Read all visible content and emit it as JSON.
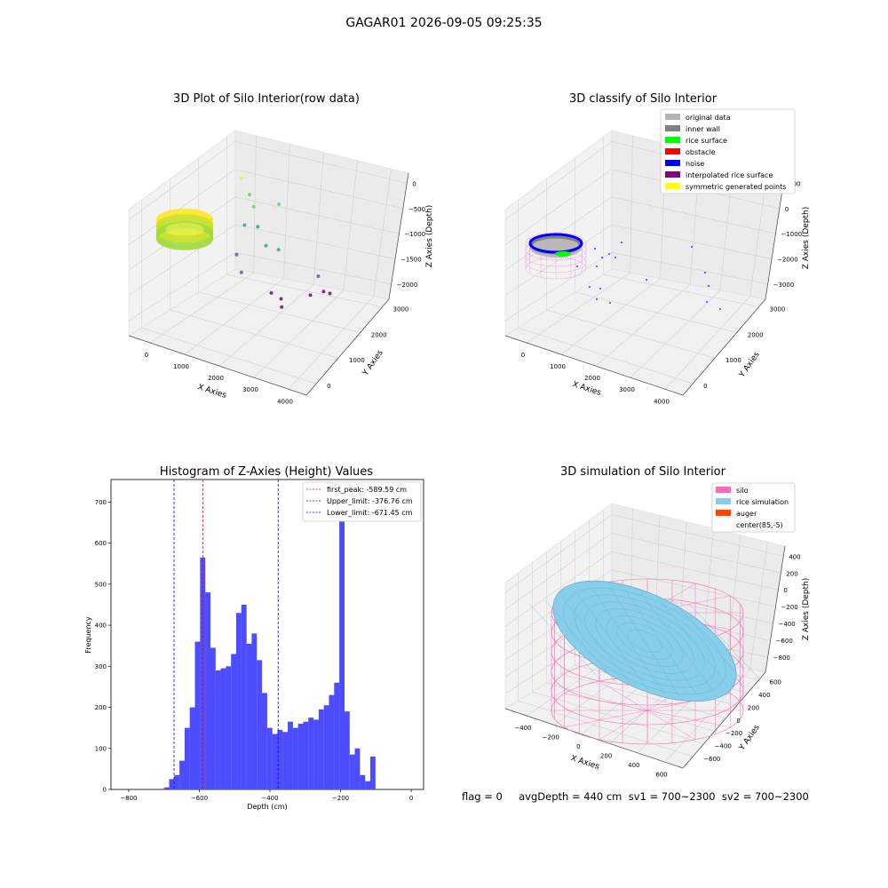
{
  "figure": {
    "suptitle": "GAGAR01 2026-09-05 09:25:35",
    "footer": "flag = 0     avgDepth = 440 cm  sv1 = 700~2300  sv2 = 700~2300"
  },
  "chart_data": [
    {
      "type": "scatter",
      "title": "3D Plot of Silo Interior(row data)",
      "xlabel": "X Axies",
      "ylabel": "Y Axies",
      "zlabel": "Z Axies (Depth)",
      "x_ticks": [
        "0",
        "1000",
        "2000",
        "3000",
        "4000"
      ],
      "y_ticks": [
        "0",
        "1000",
        "2000",
        "3000"
      ],
      "z_ticks": [
        "0",
        "−500",
        "−1000",
        "−1500",
        "−2000"
      ],
      "points": [
        {
          "x": 300,
          "y": 2400,
          "z": -300
        },
        {
          "x": 700,
          "y": 2200,
          "z": -450
        },
        {
          "x": 900,
          "y": 2100,
          "z": -600
        },
        {
          "x": 1300,
          "y": 2500,
          "z": -600
        },
        {
          "x": 800,
          "y": 1900,
          "z": -900
        },
        {
          "x": 1100,
          "y": 2000,
          "z": -900
        },
        {
          "x": 1500,
          "y": 1800,
          "z": -1100
        },
        {
          "x": 1700,
          "y": 2000,
          "z": -1200
        },
        {
          "x": 900,
          "y": 1500,
          "z": -1300
        },
        {
          "x": 1200,
          "y": 1300,
          "z": -1500
        },
        {
          "x": 2600,
          "y": 2300,
          "z": -1600
        },
        {
          "x": 3000,
          "y": 2000,
          "z": -1700
        },
        {
          "x": 3100,
          "y": 2100,
          "z": -1750
        },
        {
          "x": 2700,
          "y": 1900,
          "z": -1800
        },
        {
          "x": 1900,
          "y": 1500,
          "z": -1800
        },
        {
          "x": 2100,
          "y": 1600,
          "z": -1900
        },
        {
          "x": 2200,
          "y": 1500,
          "z": -2000
        }
      ]
    },
    {
      "type": "scatter",
      "title": "3D classify of Silo Interior",
      "xlabel": "X Axies",
      "ylabel": "Y Axies",
      "zlabel": "Z Axies (Depth)",
      "x_ticks": [
        "0",
        "1000",
        "2000",
        "3000",
        "4000"
      ],
      "y_ticks": [
        "0",
        "1000",
        "2000",
        "3000"
      ],
      "z_ticks": [
        "000",
        "0",
        "−1000",
        "−2000",
        "−3000"
      ],
      "legend_position": "upper right",
      "legend": [
        {
          "label": "original data",
          "color": "#b3b3b3"
        },
        {
          "label": "inner wall",
          "color": "#808080"
        },
        {
          "label": "rice surface",
          "color": "#00ff00"
        },
        {
          "label": "obstacle",
          "color": "#ff0000"
        },
        {
          "label": "noise",
          "color": "#0000ff"
        },
        {
          "label": "interpolated rice surface",
          "color": "#800080"
        },
        {
          "label": "symmetric generated points",
          "color": "#ffff00"
        }
      ]
    },
    {
      "type": "bar",
      "title": "Histogram of Z-Axies (Height) Values",
      "xlabel": "Depth (cm)",
      "ylabel": "Frequency",
      "xlim": [
        -850,
        35
      ],
      "ylim": [
        0,
        755
      ],
      "x_ticks": [
        "−800",
        "−600",
        "−400",
        "−200",
        "0"
      ],
      "x_tick_values": [
        -800,
        -600,
        -400,
        -200,
        0
      ],
      "y_ticks": [
        "0",
        "100",
        "200",
        "300",
        "400",
        "500",
        "600",
        "700"
      ],
      "y_tick_values": [
        0,
        100,
        200,
        300,
        400,
        500,
        600,
        700
      ],
      "bar_color": "#4d4dff",
      "bin_start": -700,
      "bin_width": 14.6,
      "values": [
        5,
        25,
        35,
        70,
        150,
        200,
        360,
        565,
        480,
        345,
        290,
        295,
        300,
        330,
        430,
        450,
        355,
        380,
        315,
        235,
        150,
        135,
        145,
        140,
        165,
        150,
        160,
        165,
        175,
        170,
        195,
        205,
        230,
        260,
        700,
        190,
        85,
        100,
        35,
        20,
        80
      ],
      "vlines": [
        {
          "label": "first_peak: -589.59 cm",
          "value": -589.59,
          "color": "#ff0000"
        },
        {
          "label": "Upper_limit: -376.76 cm",
          "value": -376.76,
          "color": "#0000ff"
        },
        {
          "label": "Lower_limit: -671.45 cm",
          "value": -671.45,
          "color": "#0000ff"
        }
      ],
      "legend_position": "upper right"
    },
    {
      "type": "scatter",
      "title": "3D simulation of Silo Interior",
      "xlabel": "X Axies",
      "ylabel": "Y Axies",
      "zlabel": "Z Axies (Depth)",
      "x_ticks": [
        "−400",
        "−200",
        "0",
        "200",
        "400",
        "600"
      ],
      "y_ticks": [
        "−600",
        "−400",
        "−200",
        "0",
        "200",
        "400",
        "600"
      ],
      "z_ticks": [
        "400",
        "200",
        "0",
        "−200",
        "−400",
        "−600",
        "−800"
      ],
      "legend_position": "upper right",
      "legend": [
        {
          "label": "silo",
          "color": "#ff69b4"
        },
        {
          "label": "rice simulation",
          "color": "#87ceeb"
        },
        {
          "label": "auger",
          "color": "#ff4500"
        },
        {
          "label": "center(85,-5)",
          "color": "#ffffff"
        }
      ]
    }
  ]
}
